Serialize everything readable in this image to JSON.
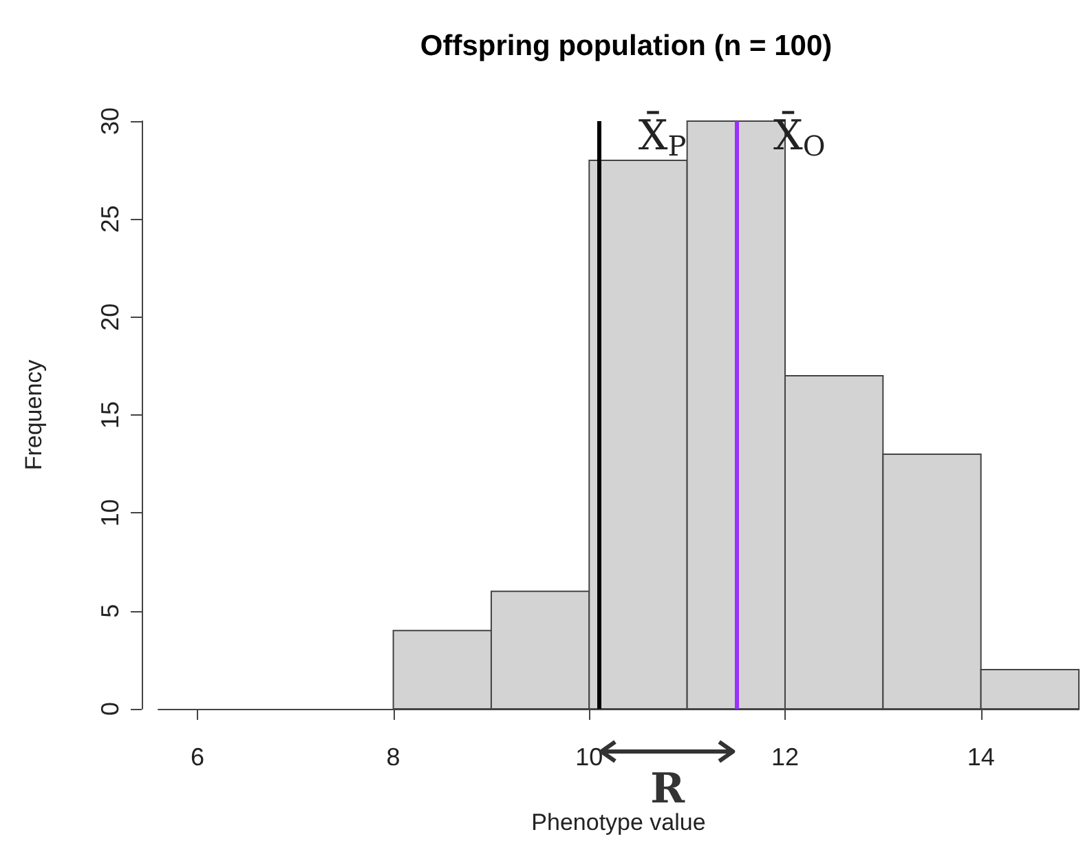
{
  "chart_data": {
    "type": "histogram",
    "title": "Offspring population (n = 100)",
    "xlabel": "Phenotype value",
    "ylabel": "Frequency",
    "bins": [
      8,
      9,
      10,
      11,
      12,
      13,
      14,
      15
    ],
    "values": [
      4,
      6,
      28,
      30,
      17,
      13,
      2
    ],
    "color": "#d3d3d3",
    "xlim": [
      5.6,
      15
    ],
    "xticks": [
      6,
      8,
      10,
      12,
      14
    ],
    "ylim": [
      0,
      30
    ],
    "yticks": [
      0,
      5,
      10,
      15,
      20,
      25,
      30
    ],
    "grid": false,
    "ref_lines": [
      {
        "axis": "x",
        "value": 10.1,
        "label": "X̄$_{P}$",
        "color": "#000000"
      },
      {
        "axis": "x",
        "value": 11.5,
        "label": "X̄$_{O}$",
        "color": "#9b30ff"
      }
    ],
    "annotations": [
      "R"
    ]
  }
}
